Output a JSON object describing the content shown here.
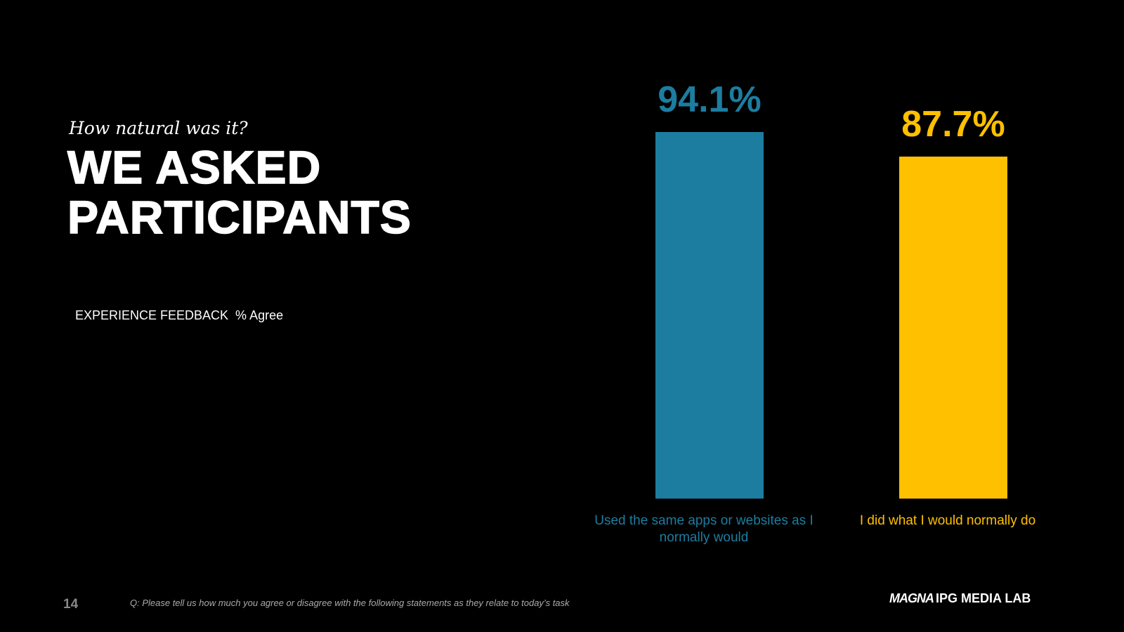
{
  "subtitle": "How natural was it?",
  "title": "WE ASKED PARTICIPANTS",
  "footer": {
    "page_number": "14",
    "note": "Q: Please tell us how much you agree or disagree with the following statements as they relate to today’s task",
    "logo": "MAGNA",
    "brand": "IPG MEDIA LAB"
  },
  "chart_data": {
    "type": "bar",
    "title": "EXPERIENCE FEEDBACK  % Agree",
    "categories": [
      "Used the same apps or websites as I normally would",
      "I did what I would normally do"
    ],
    "values": [
      94.1,
      87.7
    ],
    "value_labels": [
      "94.1%",
      "87.7%"
    ],
    "colors": [
      "#1c7da0",
      "#ffc000"
    ]
  }
}
